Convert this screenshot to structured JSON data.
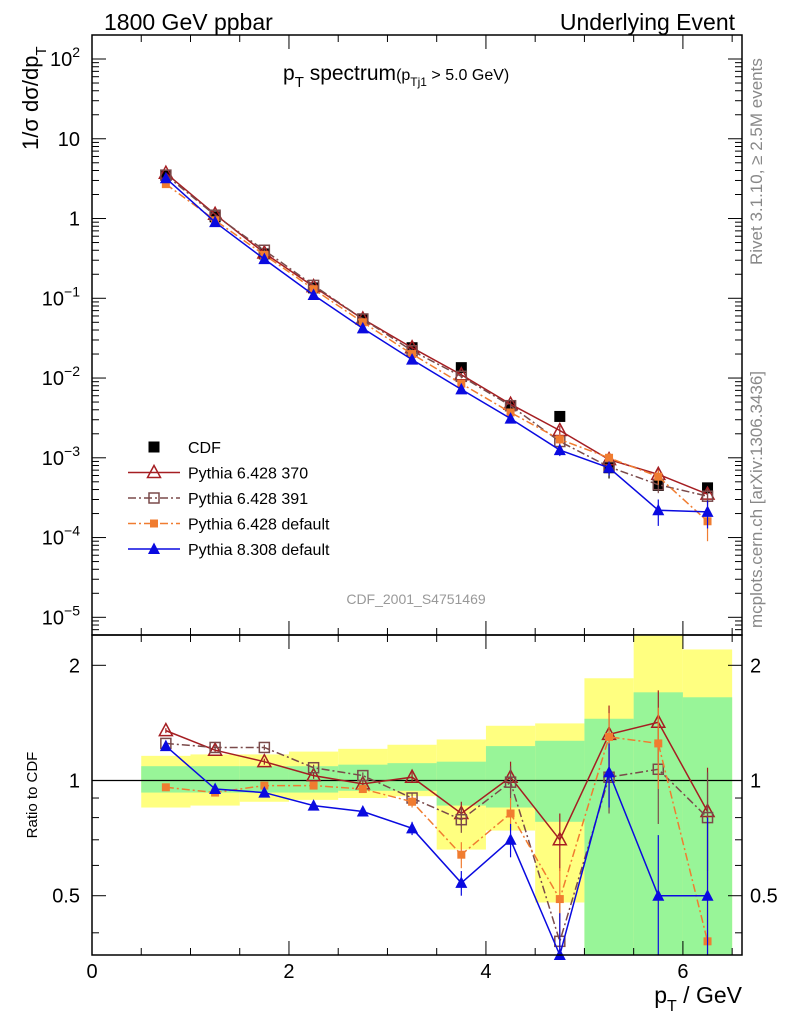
{
  "header": {
    "left": "1800 GeV ppbar",
    "right": "Underlying Event"
  },
  "side": {
    "rivet": "Rivet 3.1.10, ≥ 2.5M events",
    "mcplots": "mcplots.cern.ch [arXiv:1306.3436]"
  },
  "chart_data": [
    {
      "type": "scatter",
      "panel": "main",
      "title": {
        "p": "p",
        "sub_t": "T",
        "word": " spectrum",
        "cut_open": "(p",
        "cut_sub": "Tj1",
        "cut_close": " > 5.0 GeV)"
      },
      "analysis_label": "CDF_2001_S4751469",
      "ylabel": {
        "main": "1/σ dσ/dp",
        "sub": "T"
      },
      "yscale": "log",
      "ylim": [
        6e-06,
        200
      ],
      "xlim": [
        0,
        6.6
      ],
      "yticks": [
        {
          "value": 100,
          "base": "10",
          "exp": "2"
        },
        {
          "value": 10,
          "base": "10",
          "exp": ""
        },
        {
          "value": 1,
          "base": "1",
          "exp": ""
        },
        {
          "value": 0.1,
          "base": "10",
          "exp": "−1"
        },
        {
          "value": 0.01,
          "base": "10",
          "exp": "−2"
        },
        {
          "value": 0.001,
          "base": "10",
          "exp": "−3"
        },
        {
          "value": 0.0001,
          "base": "10",
          "exp": "−4"
        },
        {
          "value": 1e-05,
          "base": "10",
          "exp": "−5"
        }
      ],
      "x": [
        0.75,
        1.25,
        1.75,
        2.25,
        2.75,
        3.25,
        3.75,
        4.25,
        4.75,
        5.25,
        5.75,
        6.25
      ],
      "legend_position": "lower-left",
      "series": [
        {
          "name": "CDF",
          "color": "#000000",
          "marker": "square-filled",
          "line": "none",
          "values": [
            3.5,
            1.05,
            0.36,
            0.135,
            0.054,
            0.024,
            0.0135,
            0.0045,
            0.0033,
            0.00075,
            0.00045,
            0.00042
          ],
          "errors": [
            0.3,
            0.08,
            0.025,
            0.01,
            0.004,
            0.002,
            0.001,
            0.0004,
            0.0003,
            0.0002,
            7e-05,
            6e-05
          ]
        },
        {
          "name": "Pythia 6.428 370",
          "color": "#a51e22",
          "marker": "triangle-open",
          "line": "solid",
          "values": [
            3.7,
            1.13,
            0.37,
            0.14,
            0.055,
            0.024,
            0.011,
            0.0047,
            0.0022,
            0.00095,
            0.00062,
            0.00035
          ],
          "errors": [
            0.05,
            0.02,
            0.01,
            0.004,
            0.002,
            0.001,
            0.0006,
            0.0004,
            0.0003,
            0.00015,
            0.0001,
            8e-05
          ]
        },
        {
          "name": "Pythia 6.428 391",
          "color": "#7a4a4a",
          "marker": "square-open",
          "line": "dashdot",
          "values": [
            3.5,
            1.1,
            0.4,
            0.145,
            0.055,
            0.022,
            0.0105,
            0.0045,
            0.0016,
            0.00077,
            0.00046,
            0.00033
          ],
          "errors": [
            0.05,
            0.02,
            0.01,
            0.004,
            0.002,
            0.001,
            0.0006,
            0.0004,
            0.0003,
            0.00015,
            0.0001,
            8e-05
          ]
        },
        {
          "name": "Pythia 6.428 default",
          "color": "#f07c30",
          "marker": "square-filled-small",
          "line": "dashdot",
          "values": [
            2.7,
            0.95,
            0.35,
            0.13,
            0.05,
            0.02,
            0.0085,
            0.0037,
            0.0017,
            0.001,
            0.00058,
            0.00016
          ],
          "errors": [
            0.05,
            0.02,
            0.01,
            0.004,
            0.002,
            0.001,
            0.0006,
            0.0004,
            0.0003,
            0.00015,
            0.00012,
            7e-05
          ]
        },
        {
          "name": "Pythia 8.308 default",
          "color": "#0a0ae0",
          "marker": "triangle-filled",
          "line": "solid",
          "values": [
            3.2,
            0.9,
            0.31,
            0.11,
            0.042,
            0.017,
            0.0072,
            0.0031,
            0.00125,
            0.00075,
            0.00022,
            0.00021
          ],
          "errors": [
            0.05,
            0.02,
            0.01,
            0.004,
            0.002,
            0.001,
            0.0006,
            0.0004,
            0.0002,
            0.00015,
            8e-05,
            8e-05
          ]
        }
      ]
    },
    {
      "type": "line",
      "panel": "ratio",
      "ylabel": "Ratio to CDF",
      "xlabel": {
        "p": "p",
        "sub": "T",
        "unit": " / GeV"
      },
      "ylim": [
        0.35,
        2.4
      ],
      "xlim": [
        0,
        6.6
      ],
      "xticks": [
        "0",
        "2",
        "4",
        "6"
      ],
      "xtick_values": [
        0,
        2,
        4,
        6
      ],
      "yticks": [
        "0.5",
        "1",
        "2"
      ],
      "ytick_values": [
        0.5,
        1,
        2
      ],
      "reference_line": 1,
      "bins": [
        [
          0.5,
          1.0
        ],
        [
          1.0,
          1.5
        ],
        [
          1.5,
          2.0
        ],
        [
          2.0,
          2.5
        ],
        [
          2.5,
          3.0
        ],
        [
          3.0,
          3.5
        ],
        [
          3.5,
          4.0
        ],
        [
          4.0,
          4.5
        ],
        [
          4.5,
          5.0
        ],
        [
          5.0,
          5.5
        ],
        [
          5.5,
          6.0
        ],
        [
          6.0,
          6.5
        ]
      ],
      "band_yellow": [
        [
          0.85,
          1.16
        ],
        [
          0.86,
          1.17
        ],
        [
          0.88,
          1.17
        ],
        [
          0.89,
          1.19
        ],
        [
          0.9,
          1.21
        ],
        [
          0.91,
          1.24
        ],
        [
          0.66,
          1.28
        ],
        [
          0.74,
          1.39
        ],
        [
          0.48,
          1.41
        ],
        [
          0.3,
          1.85
        ],
        [
          0.33,
          2.4
        ],
        [
          0.33,
          2.2
        ]
      ],
      "band_green": [
        [
          0.93,
          1.09
        ],
        [
          0.93,
          1.09
        ],
        [
          0.93,
          1.09
        ],
        [
          0.93,
          1.09
        ],
        [
          0.94,
          1.1
        ],
        [
          0.94,
          1.11
        ],
        [
          0.86,
          1.12
        ],
        [
          0.85,
          1.23
        ],
        [
          0.78,
          1.27
        ],
        [
          0.3,
          1.45
        ],
        [
          0.33,
          1.7
        ],
        [
          0.33,
          1.65
        ]
      ],
      "series": [
        {
          "name": "Pythia 6.428 370",
          "values": [
            1.35,
            1.2,
            1.12,
            1.03,
            0.98,
            1.02,
            0.82,
            1.02,
            0.7,
            1.32,
            1.42,
            0.83
          ],
          "errors": [
            0.02,
            0.02,
            0.02,
            0.02,
            0.02,
            0.03,
            0.06,
            0.1,
            0.12,
            0.25,
            0.3,
            0.25
          ]
        },
        {
          "name": "Pythia 6.428 391",
          "values": [
            1.25,
            1.22,
            1.22,
            1.08,
            1.03,
            0.9,
            0.79,
            0.99,
            0.38,
            1.02,
            1.07,
            0.8
          ],
          "errors": [
            0.02,
            0.02,
            0.02,
            0.02,
            0.02,
            0.03,
            0.06,
            0.1,
            0.1,
            0.2,
            0.3,
            0.25
          ]
        },
        {
          "name": "Pythia 6.428 default",
          "values": [
            0.96,
            0.93,
            0.97,
            0.97,
            0.95,
            0.88,
            0.64,
            0.82,
            0.49,
            1.3,
            1.25,
            0.38
          ],
          "errors": [
            0.02,
            0.02,
            0.02,
            0.02,
            0.02,
            0.03,
            0.05,
            0.08,
            0.1,
            0.2,
            0.3,
            0.2
          ]
        },
        {
          "name": "Pythia 8.308 default",
          "values": [
            1.23,
            0.95,
            0.93,
            0.86,
            0.83,
            0.75,
            0.54,
            0.7,
            0.35,
            1.05,
            0.5,
            0.5
          ],
          "errors": [
            0.02,
            0.02,
            0.02,
            0.02,
            0.02,
            0.03,
            0.04,
            0.07,
            0.1,
            0.2,
            0.22,
            0.3
          ]
        }
      ]
    }
  ]
}
